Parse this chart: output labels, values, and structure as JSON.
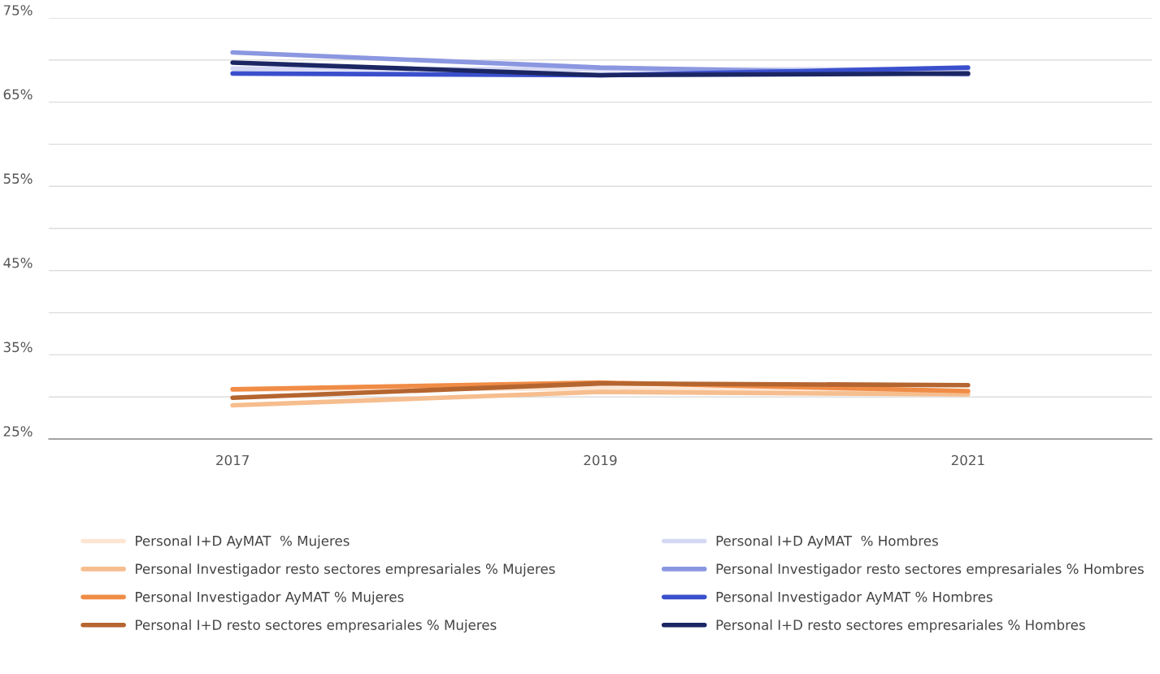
{
  "chart_data": {
    "type": "line",
    "categories": [
      "2017",
      "2019",
      "2021"
    ],
    "series": [
      {
        "name": "Personal I+D AyMAT  % Mujeres",
        "color": "#fde6d4",
        "values": [
          30.9,
          31.0,
          30.5
        ]
      },
      {
        "name": "Personal Investigador resto sectores empresariales % Mujeres",
        "color": "#f6bd8e",
        "values": [
          29.0,
          30.6,
          30.3
        ]
      },
      {
        "name": "Personal Investigador AyMAT % Mujeres",
        "color": "#f08c46",
        "values": [
          30.9,
          31.7,
          30.7
        ]
      },
      {
        "name": "Personal I+D resto sectores empresariales % Mujeres",
        "color": "#b5652f",
        "values": [
          29.9,
          31.6,
          31.4
        ]
      },
      {
        "name": "Personal I+D AyMAT  % Hombres",
        "color": "#d6d9f5",
        "values": [
          69.0,
          68.9,
          68.9
        ]
      },
      {
        "name": "Personal Investigador resto sectores empresariales % Hombres",
        "color": "#8b97e0",
        "values": [
          70.9,
          69.1,
          68.3
        ]
      },
      {
        "name": "Personal Investigador AyMAT % Hombres",
        "color": "#3a4fcc",
        "values": [
          68.4,
          68.2,
          69.1
        ]
      },
      {
        "name": "Personal I+D resto sectores empresariales % Hombres",
        "color": "#1b2663",
        "values": [
          69.7,
          68.2,
          68.4
        ]
      }
    ],
    "ylim": [
      25,
      75
    ],
    "yticks": [
      {
        "value": 25,
        "label": "25%"
      },
      {
        "value": 30,
        "label": null
      },
      {
        "value": 35,
        "label": "35%"
      },
      {
        "value": 40,
        "label": null
      },
      {
        "value": 45,
        "label": "45%"
      },
      {
        "value": 50,
        "label": null
      },
      {
        "value": 55,
        "label": "55%"
      },
      {
        "value": 60,
        "label": null
      },
      {
        "value": 65,
        "label": "65%"
      },
      {
        "value": 70,
        "label": null
      },
      {
        "value": 75,
        "label": "75%"
      }
    ],
    "grid": "y",
    "legend": "bottom",
    "marker": "none",
    "line_style": "solid"
  }
}
